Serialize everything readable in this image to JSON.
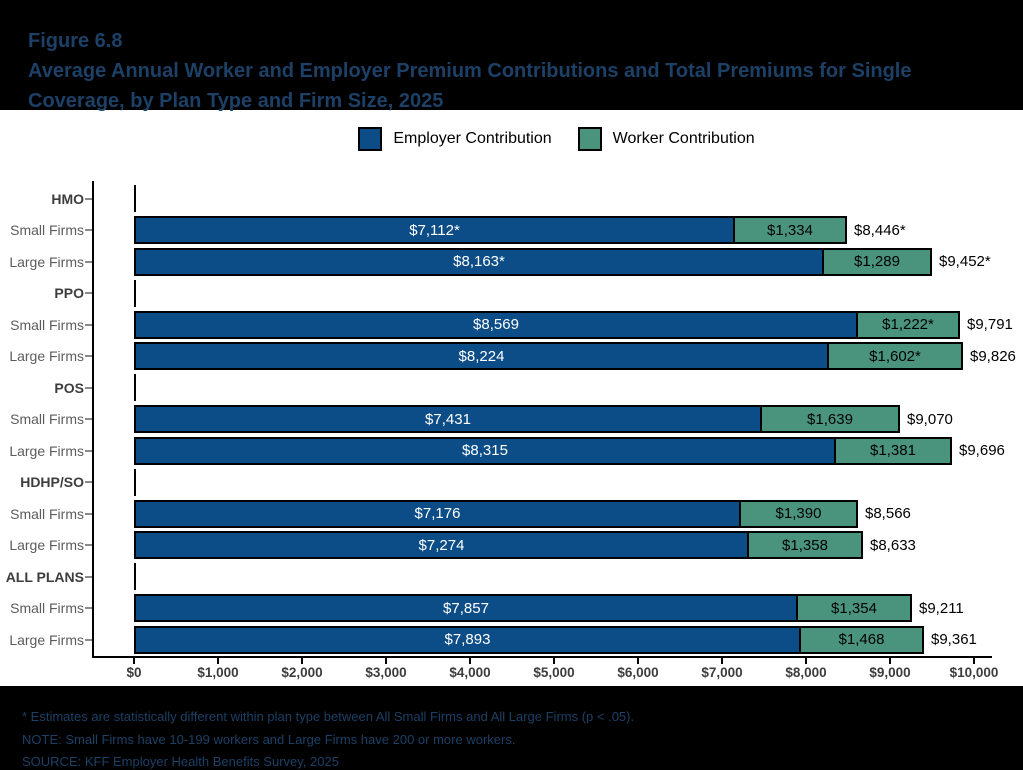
{
  "figure": {
    "label": "Figure 6.8",
    "title": "Average Annual Worker and Employer Premium Contributions and Total Premiums for Single Coverage, by Plan Type and Firm Size, 2025"
  },
  "legend": [
    {
      "label": "Employer Contribution",
      "color": "#0d4d87"
    },
    {
      "label": "Worker Contribution",
      "color": "#4a947e"
    }
  ],
  "chart_data": {
    "type": "bar",
    "orientation": "horizontal",
    "stacked": true,
    "title": "Average Annual Worker and Employer Premium Contributions and Total Premiums for Single Coverage, by Plan Type and Firm Size, 2025",
    "xlabel": "",
    "ylabel": "",
    "xlim": [
      0,
      10000
    ],
    "x_tick_labels": [
      "$0",
      "$1,000",
      "$2,000",
      "$3,000",
      "$4,000",
      "$5,000",
      "$6,000",
      "$7,000",
      "$8,000",
      "$9,000",
      "$10,000"
    ],
    "grid": false,
    "legend_position": "top",
    "series": [
      "Employer Contribution",
      "Worker Contribution"
    ],
    "groups": [
      {
        "plan": "HMO",
        "rows": [
          {
            "firm": "Small Firms",
            "employer": 7112,
            "worker": 1334,
            "total": 8446,
            "employer_label": "$7,112*",
            "worker_label": "$1,334",
            "total_label": "$8,446*"
          },
          {
            "firm": "Large Firms",
            "employer": 8163,
            "worker": 1289,
            "total": 9452,
            "employer_label": "$8,163*",
            "worker_label": "$1,289",
            "total_label": "$9,452*"
          }
        ]
      },
      {
        "plan": "PPO",
        "rows": [
          {
            "firm": "Small Firms",
            "employer": 8569,
            "worker": 1222,
            "total": 9791,
            "employer_label": "$8,569",
            "worker_label": "$1,222*",
            "total_label": "$9,791"
          },
          {
            "firm": "Large Firms",
            "employer": 8224,
            "worker": 1602,
            "total": 9826,
            "employer_label": "$8,224",
            "worker_label": "$1,602*",
            "total_label": "$9,826"
          }
        ]
      },
      {
        "plan": "POS",
        "rows": [
          {
            "firm": "Small Firms",
            "employer": 7431,
            "worker": 1639,
            "total": 9070,
            "employer_label": "$7,431",
            "worker_label": "$1,639",
            "total_label": "$9,070"
          },
          {
            "firm": "Large Firms",
            "employer": 8315,
            "worker": 1381,
            "total": 9696,
            "employer_label": "$8,315",
            "worker_label": "$1,381",
            "total_label": "$9,696"
          }
        ]
      },
      {
        "plan": "HDHP/SO",
        "rows": [
          {
            "firm": "Small Firms",
            "employer": 7176,
            "worker": 1390,
            "total": 8566,
            "employer_label": "$7,176",
            "worker_label": "$1,390",
            "total_label": "$8,566"
          },
          {
            "firm": "Large Firms",
            "employer": 7274,
            "worker": 1358,
            "total": 8633,
            "employer_label": "$7,274",
            "worker_label": "$1,358",
            "total_label": "$8,633"
          }
        ]
      },
      {
        "plan": "ALL PLANS",
        "rows": [
          {
            "firm": "Small Firms",
            "employer": 7857,
            "worker": 1354,
            "total": 9211,
            "employer_label": "$7,857",
            "worker_label": "$1,354",
            "total_label": "$9,211"
          },
          {
            "firm": "Large Firms",
            "employer": 7893,
            "worker": 1468,
            "total": 9361,
            "employer_label": "$7,893",
            "worker_label": "$1,468",
            "total_label": "$9,361"
          }
        ]
      }
    ]
  },
  "footnotes": [
    "* Estimates are statistically different within plan type between All Small Firms and All Large Firms (p < .05).",
    "NOTE: Small Firms have 10-199 workers and Large Firms have 200 or more workers.",
    "SOURCE: KFF Employer Health Benefits Survey, 2025"
  ],
  "colors": {
    "employer": "#0d4d87",
    "worker": "#4a947e",
    "banner_bg": "#000000",
    "banner_text": "#1d4066",
    "bar_border": "#000000"
  }
}
